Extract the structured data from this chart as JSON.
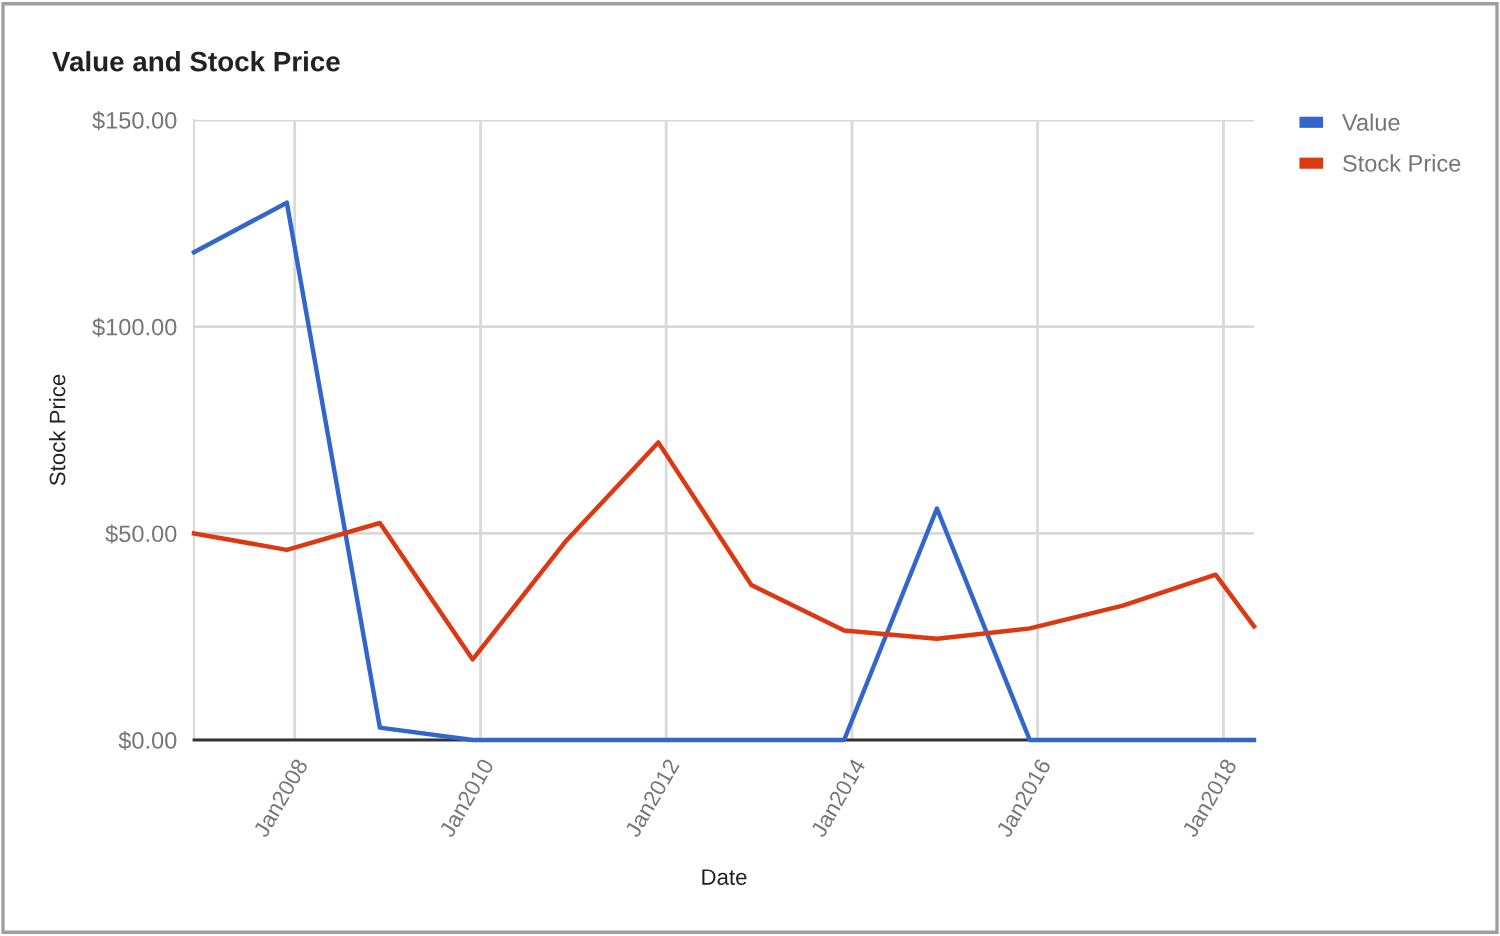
{
  "chart_data": {
    "type": "line",
    "title": "Value and Stock Price",
    "xlabel": "Date",
    "ylabel": "Stock Price",
    "x": [
      "2006-12",
      "2007-12",
      "2008-12",
      "2009-12",
      "2010-12",
      "2011-12",
      "2012-12",
      "2013-12",
      "2014-12",
      "2015-12",
      "2016-12",
      "2017-12",
      "2018-05"
    ],
    "series": [
      {
        "name": "Value",
        "color": "#3366cc",
        "values": [
          118,
          130,
          3,
          0,
          0,
          0,
          0,
          0,
          56,
          0,
          0,
          0,
          0
        ]
      },
      {
        "name": "Stock Price",
        "color": "#dc3912",
        "values": [
          50,
          46,
          52.5,
          19.5,
          48,
          72,
          37.5,
          26.5,
          24.5,
          27,
          32.5,
          40,
          27.5
        ]
      }
    ],
    "xlim": [
      "2006-12",
      "2018-05"
    ],
    "xticks": [
      {
        "value": "2008-01",
        "label": "Jan2008"
      },
      {
        "value": "2010-01",
        "label": "Jan2010"
      },
      {
        "value": "2012-01",
        "label": "Jan2012"
      },
      {
        "value": "2014-01",
        "label": "Jan2014"
      },
      {
        "value": "2016-01",
        "label": "Jan2016"
      },
      {
        "value": "2018-01",
        "label": "Jan2018"
      }
    ],
    "ylim": [
      0,
      150
    ],
    "yticks": [
      {
        "value": 0,
        "label": "$0.00"
      },
      {
        "value": 50,
        "label": "$50.00"
      },
      {
        "value": 100,
        "label": "$100.00"
      },
      {
        "value": 150,
        "label": "$150.00"
      }
    ],
    "grid": true,
    "legend": "top right",
    "line_style": "solid"
  }
}
